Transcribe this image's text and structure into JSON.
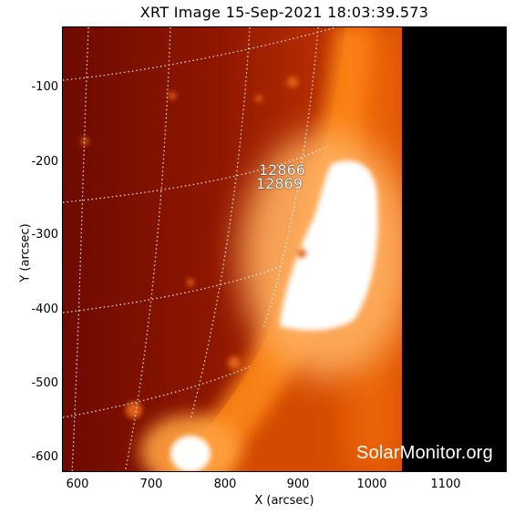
{
  "title": "XRT Image 15-Sep-2021 18:03:39.573",
  "xlabel": "X (arcsec)",
  "ylabel": "Y (arcsec)",
  "watermark": "SolarMonitor.org",
  "regions": [
    "12866",
    "12869"
  ],
  "colors": {
    "disk_dark": "#7a0c00",
    "disk_mid": "#b42a00",
    "limb_glow": "#ff8a1e",
    "flare_core": "#ffffff",
    "off_disk": "#000000",
    "grid": "#ffffff"
  },
  "chart_data": {
    "type": "heatmap",
    "title": "XRT Image 15-Sep-2021 18:03:39.573",
    "xlabel": "X (arcsec)",
    "ylabel": "Y (arcsec)",
    "xlim": [
      580,
      1180
    ],
    "ylim": [
      -620,
      -20
    ],
    "xticks": [
      600,
      700,
      800,
      900,
      1000,
      1100
    ],
    "yticks": [
      -100,
      -200,
      -300,
      -400,
      -500,
      -600
    ],
    "grid": "heliographic dotted",
    "annotations": [
      {
        "text": "12866",
        "x": 880,
        "y": -210
      },
      {
        "text": "12869",
        "x": 880,
        "y": -228
      }
    ]
  }
}
